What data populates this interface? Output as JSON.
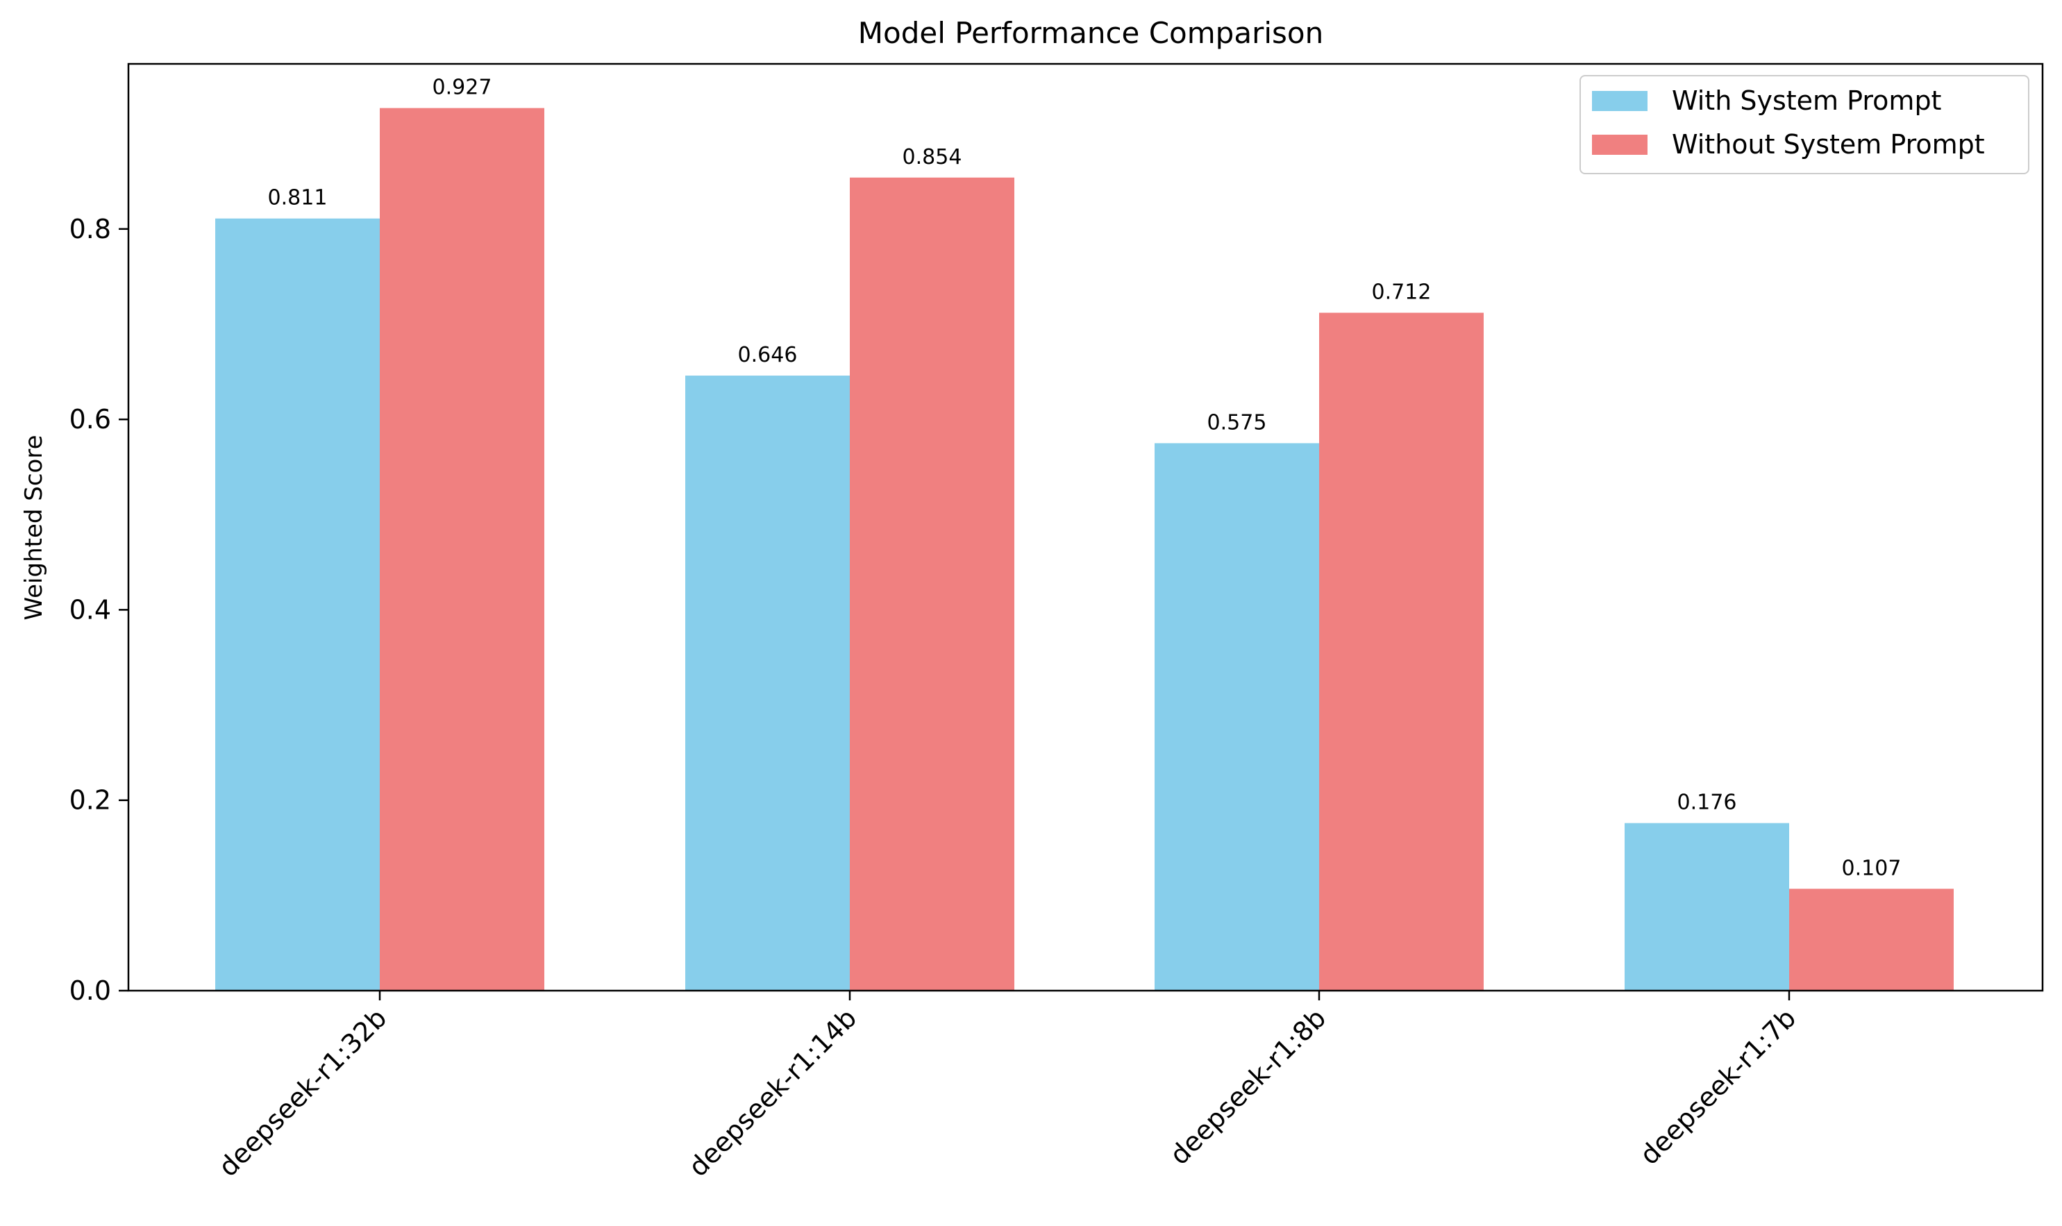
{
  "chart_data": {
    "type": "bar",
    "title": "Model Performance Comparison",
    "xlabel": "",
    "ylabel": "Weighted Score",
    "categories": [
      "deepseek-r1:32b",
      "deepseek-r1:14b",
      "deepseek-r1:8b",
      "deepseek-r1:7b"
    ],
    "series": [
      {
        "name": "With System Prompt",
        "color": "#87CEEB",
        "values": [
          0.811,
          0.646,
          0.575,
          0.176
        ],
        "value_labels": [
          "0.811",
          "0.646",
          "0.575",
          "0.176"
        ]
      },
      {
        "name": "Without System Prompt",
        "color": "#F08080",
        "values": [
          0.927,
          0.854,
          0.712,
          0.107
        ],
        "value_labels": [
          "0.927",
          "0.854",
          "0.712",
          "0.107"
        ]
      }
    ],
    "ylim": [
      0,
      0.9734
    ],
    "yticks": [
      {
        "value": 0.0,
        "label": "0.0"
      },
      {
        "value": 0.2,
        "label": "0.2"
      },
      {
        "value": 0.4,
        "label": "0.4"
      },
      {
        "value": 0.6,
        "label": "0.6"
      },
      {
        "value": 0.8,
        "label": "0.8"
      }
    ],
    "grid": false,
    "legend_position": "top-right"
  }
}
